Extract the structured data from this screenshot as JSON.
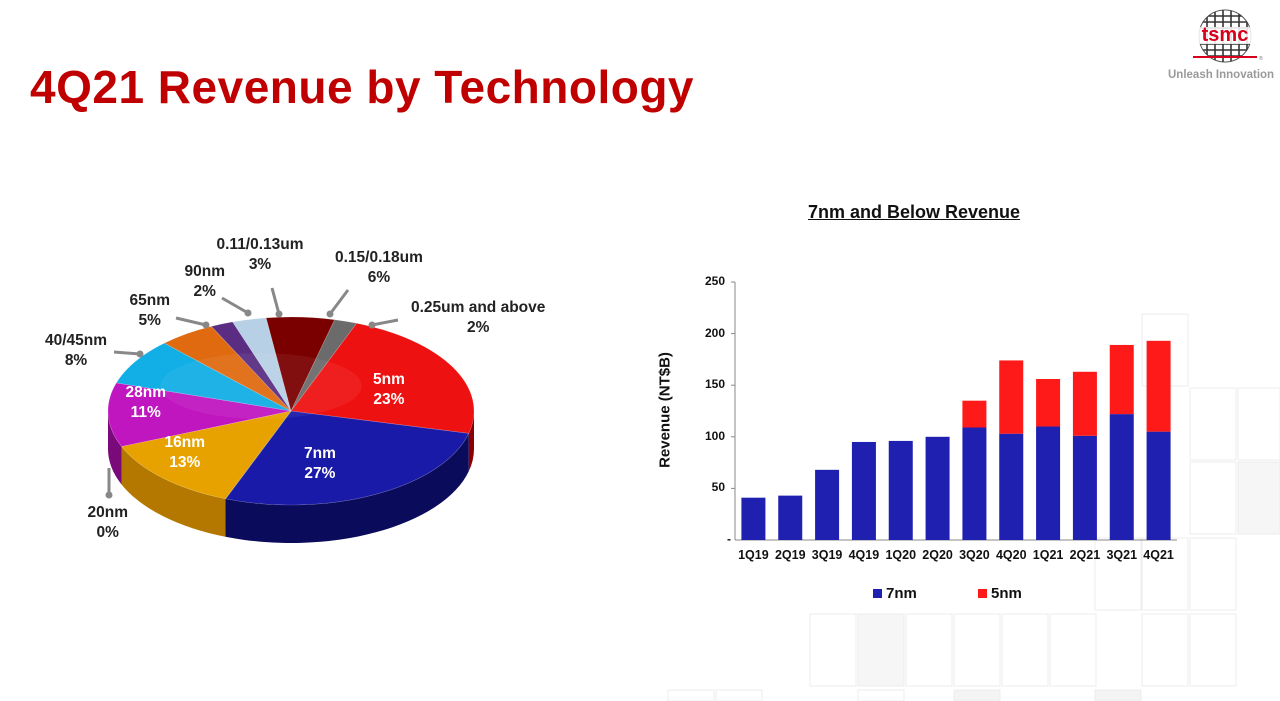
{
  "slide": {
    "title": "4Q21 Revenue by Technology",
    "logo_text": "tsmc",
    "logo_tagline": "Unleash Innovation"
  },
  "colors": {
    "title": "#c00000",
    "brand": "#d9001b"
  },
  "chart_data": [
    {
      "type": "pie",
      "title": "",
      "slices": [
        {
          "label": "5nm",
          "value": 23,
          "display": "23%",
          "color": "#ee1111",
          "side": "#8a0000"
        },
        {
          "label": "7nm",
          "value": 27,
          "display": "27%",
          "color": "#1a1aa8",
          "side": "#0b0b5c"
        },
        {
          "label": "20nm",
          "value": 0,
          "display": "0%",
          "color": "#9a9a9a",
          "side": "#555555"
        },
        {
          "label": "16nm",
          "value": 13,
          "display": "13%",
          "color": "#e8a200",
          "side": "#b47800"
        },
        {
          "label": "28nm",
          "value": 11,
          "display": "11%",
          "color": "#c016c0",
          "side": "#7a0a7a"
        },
        {
          "label": "40/45nm",
          "value": 8,
          "display": "8%",
          "color": "#12aee6",
          "side": "#0a6f96"
        },
        {
          "label": "65nm",
          "value": 5,
          "display": "5%",
          "color": "#e06a10",
          "side": "#8c3f05"
        },
        {
          "label": "90nm",
          "value": 2,
          "display": "2%",
          "color": "#5a2d82",
          "side": "#341a4c"
        },
        {
          "label": "0.11/0.13um",
          "value": 3,
          "display": "3%",
          "color": "#b8d0e6",
          "side": "#7d93a8"
        },
        {
          "label": "0.15/0.18um",
          "value": 6,
          "display": "6%",
          "color": "#7a0000",
          "side": "#4a0000"
        },
        {
          "label": "0.25um and above",
          "value": 2,
          "display": "2%",
          "color": "#6b6b6b",
          "side": "#444444"
        }
      ]
    },
    {
      "type": "bar",
      "stacked": true,
      "title": "7nm and Below Revenue",
      "xlabel": "",
      "ylabel": "Revenue (NT$B)",
      "ylim": [
        0,
        250
      ],
      "yticks": [
        250,
        200,
        150,
        100,
        50
      ],
      "ytick_zero_label": "-",
      "categories": [
        "1Q19",
        "2Q19",
        "3Q19",
        "4Q19",
        "1Q20",
        "2Q20",
        "3Q20",
        "4Q20",
        "1Q21",
        "2Q21",
        "3Q21",
        "4Q21"
      ],
      "series": [
        {
          "name": "7nm",
          "color": "#1f1fb0",
          "values": [
            41,
            43,
            68,
            95,
            96,
            100,
            109,
            103,
            110,
            101,
            122,
            105
          ]
        },
        {
          "name": "5nm",
          "color": "#ff1a1a",
          "values": [
            0,
            0,
            0,
            0,
            0,
            0,
            26,
            71,
            46,
            62,
            67,
            88
          ]
        }
      ],
      "legend": "bottom"
    }
  ]
}
